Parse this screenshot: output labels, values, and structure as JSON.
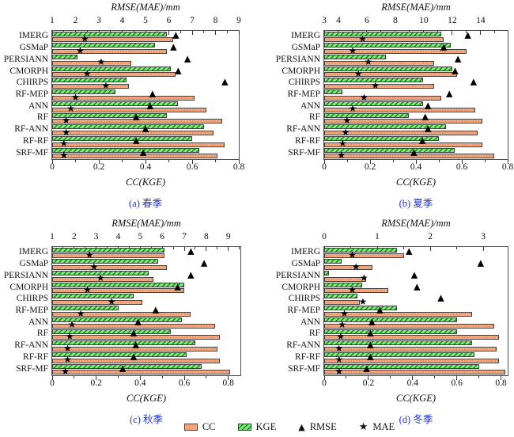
{
  "figure": {
    "background": "#ffffff"
  },
  "colors": {
    "cc_fill": "#f5ac85",
    "cc_dots": "#be6437",
    "kge_fill": "#82e87f",
    "kge_hatch": "#177d17",
    "marker": "#000000",
    "caption_blue": "#2233cc",
    "axis_line": "#4f4f4f"
  },
  "icons": {
    "rmse_triangle": "▲",
    "mae_star": "★"
  },
  "legend": {
    "items": [
      {
        "label": "CC",
        "swatch": "cc"
      },
      {
        "label": "KGE",
        "swatch": "kge"
      },
      {
        "label": "RMSE",
        "glyph": "▲"
      },
      {
        "label": "MAE",
        "glyph": "★"
      }
    ]
  },
  "chart_data": [
    {
      "type": "bar",
      "id": "a",
      "caption": "(a) 春季",
      "orientation": "horizontal",
      "top_axis": {
        "label": "RMSE(MAE)/mm",
        "min": 1,
        "max": 9,
        "major_ticks": [
          1,
          2,
          3,
          4,
          5,
          6,
          7,
          8,
          9
        ],
        "major_labels": [
          "1",
          "2",
          "3",
          "4",
          "5",
          "6",
          "7",
          "8",
          "9"
        ],
        "minor_step": 0.5
      },
      "bottom_axis": {
        "label": "CC(KGE)",
        "min": 0,
        "max": 0.8,
        "major_ticks": [
          0,
          0.2,
          0.4,
          0.6,
          0.8
        ],
        "major_labels": [
          "0",
          "0.2",
          "0.4",
          "0.6",
          "0.8"
        ],
        "minor_step": 0.1
      },
      "categories": [
        "IMERG",
        "GSMaP",
        "PERSIANN",
        "CMORPH",
        "CHIRPS",
        "RF-MEP",
        "ANN",
        "RF",
        "RF-ANN",
        "RF-RF",
        "SRF-MF"
      ],
      "series": [
        {
          "name": "CC",
          "axis": "bottom",
          "values": [
            0.52,
            0.49,
            0.34,
            0.53,
            0.33,
            0.61,
            0.66,
            0.73,
            0.69,
            0.74,
            0.71
          ]
        },
        {
          "name": "KGE",
          "axis": "bottom",
          "values": [
            0.49,
            0.44,
            0.11,
            0.51,
            0.32,
            0.27,
            0.54,
            0.49,
            0.65,
            0.6,
            0.63
          ]
        }
      ],
      "markers": [
        {
          "name": "RMSE",
          "axis": "top",
          "values": [
            6.3,
            6.2,
            6.8,
            6.4,
            8.4,
            5.3,
            5.2,
            4.6,
            5.0,
            4.6,
            4.9
          ]
        },
        {
          "name": "MAE",
          "axis": "top",
          "values": [
            2.4,
            2.2,
            3.1,
            2.5,
            3.3,
            2.0,
            1.8,
            1.6,
            1.6,
            1.5,
            1.5
          ]
        }
      ]
    },
    {
      "type": "bar",
      "id": "b",
      "caption": "(b) 夏季",
      "orientation": "horizontal",
      "top_axis": {
        "label": "RMSE(MAE)/mm",
        "min": 3,
        "max": 15.9,
        "major_ticks": [
          3,
          4,
          6,
          8,
          10,
          12,
          14
        ],
        "major_labels": [
          "3",
          "4",
          "6",
          "8",
          "10",
          "12",
          "14"
        ],
        "minor_step": 1
      },
      "bottom_axis": {
        "label": "CC(KGE)",
        "min": 0,
        "max": 0.8,
        "major_ticks": [
          0,
          0.2,
          0.4,
          0.6,
          0.8
        ],
        "major_labels": [
          "0",
          "0.2",
          "0.4",
          "0.6",
          "0.8"
        ],
        "minor_step": 0.1
      },
      "categories": [
        "IMERG",
        "GSMaP",
        "PERSIANN",
        "CMORPH",
        "CHIRPS",
        "RF-MEP",
        "ANN",
        "RF",
        "RF-ANN",
        "RF-RF",
        "SRF-MF"
      ],
      "series": [
        {
          "name": "CC",
          "axis": "bottom",
          "values": [
            0.52,
            0.62,
            0.48,
            0.58,
            0.48,
            0.51,
            0.66,
            0.69,
            0.67,
            0.69,
            0.74
          ]
        },
        {
          "name": "KGE",
          "axis": "bottom",
          "values": [
            0.51,
            0.55,
            0.27,
            0.56,
            0.43,
            0.08,
            0.43,
            0.37,
            0.53,
            0.5,
            0.57
          ]
        }
      ],
      "markers": [
        {
          "name": "RMSE",
          "axis": "top",
          "values": [
            13.1,
            11.4,
            12.4,
            12.2,
            13.5,
            11.8,
            10.3,
            10.1,
            10.3,
            9.9,
            9.3
          ]
        },
        {
          "name": "MAE",
          "axis": "top",
          "values": [
            5.7,
            5.0,
            6.1,
            5.4,
            6.6,
            5.8,
            5.0,
            4.6,
            4.5,
            4.3,
            4.2
          ]
        }
      ]
    },
    {
      "type": "bar",
      "id": "c",
      "caption": "(c) 秋季",
      "orientation": "horizontal",
      "top_axis": {
        "label": "RMSE(MAE)/mm",
        "min": 1,
        "max": 9.55,
        "major_ticks": [
          1,
          2,
          3,
          4,
          5,
          6,
          7,
          8,
          9
        ],
        "major_labels": [
          "1",
          "2",
          "3",
          "4",
          "5",
          "6",
          "7",
          "8",
          "9"
        ],
        "minor_step": 0.5
      },
      "bottom_axis": {
        "label": "CC(KGE)",
        "min": 0,
        "max": 0.855,
        "major_ticks": [
          0,
          0.2,
          0.4,
          0.6,
          0.8
        ],
        "major_labels": [
          "0",
          "0.2",
          "0.4",
          "0.6",
          "0.8"
        ],
        "minor_step": 0.1
      },
      "categories": [
        "IMERG",
        "GSMaP",
        "PERSIANN",
        "CMORPH",
        "CHIRPS",
        "RF-MEP",
        "ANN",
        "RF",
        "RF-ANN",
        "RF-RF",
        "SRF-MF"
      ],
      "series": [
        {
          "name": "CC",
          "axis": "bottom",
          "values": [
            0.51,
            0.52,
            0.46,
            0.6,
            0.41,
            0.63,
            0.74,
            0.76,
            0.75,
            0.76,
            0.81
          ]
        },
        {
          "name": "KGE",
          "axis": "bottom",
          "values": [
            0.51,
            0.48,
            0.44,
            0.6,
            0.37,
            0.3,
            0.59,
            0.54,
            0.65,
            0.61,
            0.68
          ]
        }
      ],
      "markers": [
        {
          "name": "RMSE",
          "axis": "top",
          "values": [
            7.3,
            7.9,
            7.3,
            6.7,
            null,
            5.7,
            4.9,
            4.7,
            4.8,
            4.7,
            4.2
          ]
        },
        {
          "name": "MAE",
          "axis": "top",
          "values": [
            2.7,
            2.9,
            3.2,
            2.6,
            3.7,
            2.3,
            1.9,
            1.8,
            1.7,
            1.7,
            1.6
          ]
        }
      ]
    },
    {
      "type": "bar",
      "id": "d",
      "caption": "(d) 冬季",
      "orientation": "horizontal",
      "top_axis": {
        "label": "RMSE(MAE)/mm",
        "min": 0,
        "max": 3.46,
        "major_ticks": [
          0,
          1,
          2,
          3
        ],
        "major_labels": [
          "0",
          "1",
          "2",
          "3"
        ],
        "minor_step": 0.5
      },
      "bottom_axis": {
        "label": "CC(KGE)",
        "min": 0,
        "max": 0.83,
        "major_ticks": [
          0,
          0.2,
          0.4,
          0.6,
          0.8
        ],
        "major_labels": [
          "0",
          "0.2",
          "0.4",
          "0.6",
          "0.8"
        ],
        "minor_step": 0.1
      },
      "categories": [
        "IMERG",
        "GSMaP",
        "PERSIANN",
        "CMORPH",
        "CHIRPS",
        "RF-MEP",
        "ANN",
        "RF",
        "RF-ANN",
        "RF-RF",
        "SRF-MF"
      ],
      "series": [
        {
          "name": "CC",
          "axis": "bottom",
          "values": [
            0.36,
            0.22,
            0.19,
            0.29,
            0.16,
            0.67,
            0.77,
            0.79,
            0.78,
            0.79,
            0.82
          ]
        },
        {
          "name": "KGE",
          "axis": "bottom",
          "values": [
            0.33,
            0.08,
            0.02,
            0.17,
            0.15,
            0.33,
            0.6,
            0.6,
            0.67,
            0.68,
            0.7
          ]
        }
      ],
      "markers": [
        {
          "name": "RMSE",
          "axis": "top",
          "values": [
            1.6,
            2.95,
            1.7,
            1.75,
            2.2,
            1.05,
            0.9,
            0.87,
            0.87,
            0.87,
            0.8
          ]
        },
        {
          "name": "MAE",
          "axis": "top",
          "values": [
            0.53,
            0.6,
            0.75,
            0.53,
            0.73,
            0.38,
            0.34,
            0.31,
            0.28,
            0.28,
            0.28
          ]
        }
      ]
    }
  ]
}
